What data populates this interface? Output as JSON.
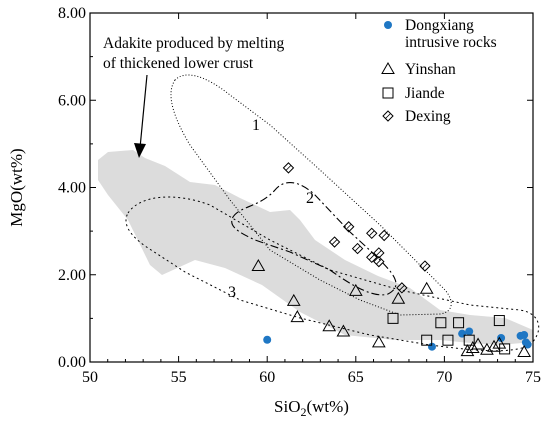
{
  "chart_data": {
    "type": "scatter",
    "title": "",
    "xlabel": "SiO2(wt%)",
    "xlabel_main": "SiO",
    "xlabel_sub": "2",
    "xlabel_tail": "(wt%)",
    "ylabel": "MgO(wt%)",
    "xlim": [
      50,
      75
    ],
    "ylim": [
      0,
      8
    ],
    "xticks": [
      50,
      55,
      60,
      65,
      70,
      75
    ],
    "yticks": [
      0.0,
      2.0,
      4.0,
      6.0,
      8.0
    ],
    "xtick_labels": [
      "50",
      "55",
      "60",
      "65",
      "70",
      "75"
    ],
    "ytick_labels": [
      "0.00",
      "2.00",
      "4.00",
      "6.00",
      "8.00"
    ],
    "legend_position": "top-right",
    "series": [
      {
        "name": "Dongxiang intrusive rocks",
        "legend_lines": [
          "Dongxiang",
          "intrusive rocks"
        ],
        "marker": "filled-circle",
        "color": "#1f77c4",
        "x": [
          60.0,
          69.3,
          71.0,
          71.4,
          73.2,
          74.3,
          74.6,
          74.7,
          74.5
        ],
        "y": [
          0.51,
          0.35,
          0.65,
          0.7,
          0.55,
          0.6,
          0.45,
          0.4,
          0.62
        ]
      },
      {
        "name": "Yinshan",
        "marker": "triangle",
        "color": "#000000",
        "x": [
          59.5,
          61.5,
          61.7,
          63.5,
          64.3,
          65.0,
          66.3,
          67.4,
          69.0,
          71.3,
          71.6,
          71.9,
          72.4,
          72.8,
          73.1,
          74.5
        ],
        "y": [
          2.2,
          1.4,
          1.03,
          0.82,
          0.7,
          1.63,
          0.45,
          1.45,
          1.68,
          0.25,
          0.32,
          0.4,
          0.28,
          0.35,
          0.42,
          0.23
        ]
      },
      {
        "name": "Jiande",
        "marker": "square",
        "color": "#000000",
        "x": [
          67.1,
          69.0,
          69.8,
          70.2,
          70.8,
          71.4,
          73.1,
          73.4
        ],
        "y": [
          1.0,
          0.5,
          0.9,
          0.5,
          0.9,
          0.5,
          0.95,
          0.3
        ]
      },
      {
        "name": "Dexing",
        "marker": "diamond",
        "color": "#000000",
        "x": [
          61.2,
          63.8,
          64.6,
          65.1,
          65.9,
          65.9,
          66.3,
          66.6,
          66.3,
          67.6,
          68.9
        ],
        "y": [
          4.45,
          2.75,
          3.1,
          2.6,
          2.95,
          2.4,
          2.5,
          2.9,
          2.3,
          1.7,
          2.2
        ]
      }
    ],
    "annotations": {
      "adakite_line1": "Adakite produced by melting",
      "adakite_line2": "of thickened lower crust",
      "region_1": "1",
      "region_2": "2",
      "region_3": "3"
    }
  }
}
